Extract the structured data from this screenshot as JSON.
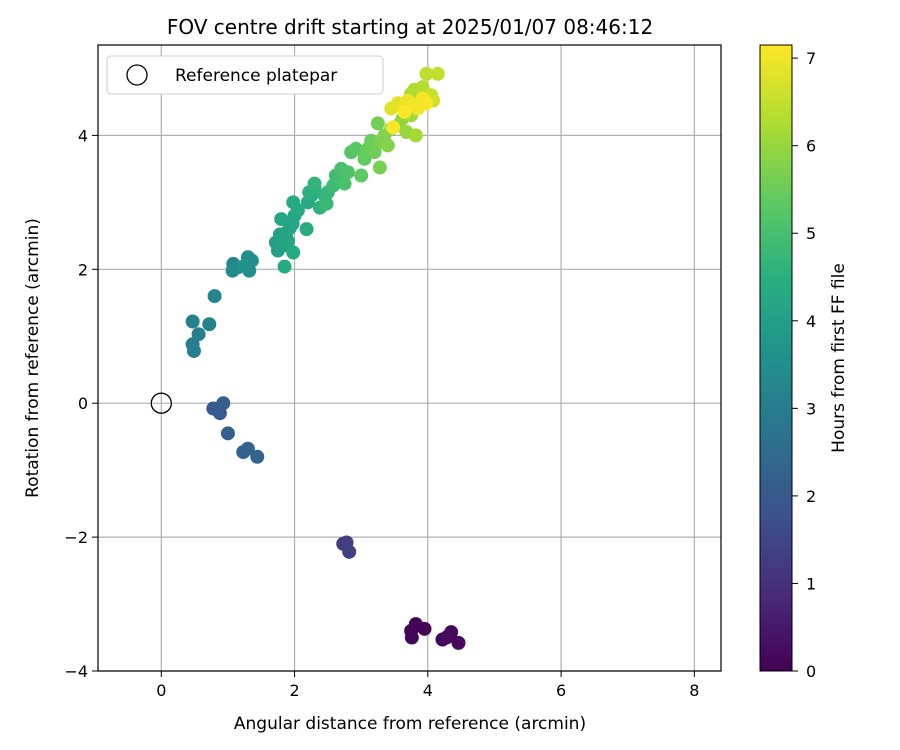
{
  "chart_data": {
    "type": "scatter",
    "title": "FOV centre drift starting at 2025/01/07 08:46:12",
    "xlabel": "Angular distance from reference (arcmin)",
    "ylabel": "Rotation from reference (arcmin)",
    "xlim": [
      -0.95,
      8.4
    ],
    "ylim": [
      -4.0,
      5.35
    ],
    "xticks": [
      0,
      2,
      4,
      6,
      8
    ],
    "xtick_labels": [
      "0",
      "2",
      "4",
      "6",
      "8"
    ],
    "yticks": [
      -4,
      -2,
      0,
      2,
      4
    ],
    "ytick_labels": [
      "−4",
      "−2",
      "0",
      "2",
      "4"
    ],
    "grid": true,
    "legend": {
      "position": "top-left",
      "entries": [
        "Reference platepar"
      ]
    },
    "reference_point": {
      "x": 0,
      "y": 0,
      "label": "Reference platepar"
    },
    "colorbar": {
      "label": "Hours from first FF file",
      "colormap": "viridis",
      "range": [
        0,
        7.15
      ],
      "ticks": [
        0,
        1,
        2,
        3,
        4,
        5,
        6,
        7
      ],
      "tick_labels": [
        "0",
        "1",
        "2",
        "3",
        "4",
        "5",
        "6",
        "7"
      ]
    },
    "series": [
      {
        "points": [
          {
            "x": 3.75,
            "y": -3.4,
            "c": 0.02
          },
          {
            "x": 3.82,
            "y": -3.3,
            "c": 0.05
          },
          {
            "x": 3.95,
            "y": -3.37,
            "c": 0.08
          },
          {
            "x": 3.76,
            "y": -3.5,
            "c": 0.1
          },
          {
            "x": 4.22,
            "y": -3.53,
            "c": 0.13
          },
          {
            "x": 4.35,
            "y": -3.42,
            "c": 0.16
          },
          {
            "x": 4.46,
            "y": -3.58,
            "c": 0.18
          },
          {
            "x": 4.28,
            "y": -3.5,
            "c": 0.2
          },
          {
            "x": 2.73,
            "y": -2.1,
            "c": 1.25
          },
          {
            "x": 2.78,
            "y": -2.08,
            "c": 1.3
          },
          {
            "x": 2.82,
            "y": -2.22,
            "c": 1.35
          },
          {
            "x": 0.78,
            "y": -0.08,
            "c": 2.0
          },
          {
            "x": 0.88,
            "y": -0.15,
            "c": 2.05
          },
          {
            "x": 0.93,
            "y": 0.0,
            "c": 2.1
          },
          {
            "x": 1.0,
            "y": -0.45,
            "c": 2.15
          },
          {
            "x": 1.23,
            "y": -0.73,
            "c": 2.2
          },
          {
            "x": 1.3,
            "y": -0.68,
            "c": 2.25
          },
          {
            "x": 1.44,
            "y": -0.8,
            "c": 2.3
          },
          {
            "x": 0.47,
            "y": 0.88,
            "c": 3.0
          },
          {
            "x": 0.49,
            "y": 0.78,
            "c": 3.05
          },
          {
            "x": 0.47,
            "y": 1.22,
            "c": 3.1
          },
          {
            "x": 0.56,
            "y": 1.03,
            "c": 3.1
          },
          {
            "x": 0.72,
            "y": 1.18,
            "c": 3.15
          },
          {
            "x": 0.8,
            "y": 1.6,
            "c": 3.2
          },
          {
            "x": 1.08,
            "y": 2.08,
            "c": 3.3
          },
          {
            "x": 1.07,
            "y": 1.98,
            "c": 3.35
          },
          {
            "x": 1.15,
            "y": 2.03,
            "c": 3.4
          },
          {
            "x": 1.3,
            "y": 2.18,
            "c": 3.45
          },
          {
            "x": 1.36,
            "y": 2.13,
            "c": 3.5
          },
          {
            "x": 1.32,
            "y": 1.98,
            "c": 3.55
          },
          {
            "x": 1.25,
            "y": 2.05,
            "c": 3.6
          },
          {
            "x": 1.72,
            "y": 2.4,
            "c": 4.0
          },
          {
            "x": 1.75,
            "y": 2.28,
            "c": 4.05
          },
          {
            "x": 1.78,
            "y": 2.52,
            "c": 4.05
          },
          {
            "x": 1.82,
            "y": 2.35,
            "c": 4.1
          },
          {
            "x": 1.85,
            "y": 2.48,
            "c": 4.1
          },
          {
            "x": 1.88,
            "y": 2.55,
            "c": 4.15
          },
          {
            "x": 1.9,
            "y": 2.42,
            "c": 4.15
          },
          {
            "x": 1.93,
            "y": 2.62,
            "c": 4.2
          },
          {
            "x": 1.97,
            "y": 2.68,
            "c": 4.2
          },
          {
            "x": 1.8,
            "y": 2.75,
            "c": 4.25
          },
          {
            "x": 2.0,
            "y": 2.8,
            "c": 4.25
          },
          {
            "x": 2.05,
            "y": 2.88,
            "c": 4.3
          },
          {
            "x": 1.98,
            "y": 3.0,
            "c": 4.3
          },
          {
            "x": 1.98,
            "y": 2.25,
            "c": 4.35
          },
          {
            "x": 1.85,
            "y": 2.04,
            "c": 4.35
          },
          {
            "x": 2.2,
            "y": 3.0,
            "c": 4.4
          },
          {
            "x": 2.18,
            "y": 2.6,
            "c": 4.4
          },
          {
            "x": 2.25,
            "y": 3.1,
            "c": 4.45
          },
          {
            "x": 2.3,
            "y": 3.22,
            "c": 4.5
          },
          {
            "x": 2.22,
            "y": 3.15,
            "c": 4.55
          },
          {
            "x": 2.38,
            "y": 2.92,
            "c": 4.6
          },
          {
            "x": 2.3,
            "y": 3.28,
            "c": 4.65
          },
          {
            "x": 2.45,
            "y": 3.1,
            "c": 4.7
          },
          {
            "x": 2.5,
            "y": 3.15,
            "c": 4.75
          },
          {
            "x": 2.48,
            "y": 2.98,
            "c": 4.8
          },
          {
            "x": 2.58,
            "y": 3.25,
            "c": 4.85
          },
          {
            "x": 2.62,
            "y": 3.4,
            "c": 4.9
          },
          {
            "x": 2.7,
            "y": 3.5,
            "c": 5.0
          },
          {
            "x": 2.75,
            "y": 3.28,
            "c": 5.05
          },
          {
            "x": 2.8,
            "y": 3.45,
            "c": 5.1
          },
          {
            "x": 2.85,
            "y": 3.75,
            "c": 5.2
          },
          {
            "x": 2.92,
            "y": 3.8,
            "c": 5.3
          },
          {
            "x": 3.0,
            "y": 3.4,
            "c": 5.35
          },
          {
            "x": 3.05,
            "y": 3.65,
            "c": 5.4
          },
          {
            "x": 3.1,
            "y": 3.8,
            "c": 5.45
          },
          {
            "x": 3.15,
            "y": 3.92,
            "c": 5.5
          },
          {
            "x": 3.2,
            "y": 3.75,
            "c": 5.55
          },
          {
            "x": 3.25,
            "y": 4.18,
            "c": 5.6
          },
          {
            "x": 3.28,
            "y": 3.52,
            "c": 5.65
          },
          {
            "x": 3.3,
            "y": 3.9,
            "c": 5.7
          },
          {
            "x": 3.35,
            "y": 4.0,
            "c": 5.75
          },
          {
            "x": 3.4,
            "y": 3.85,
            "c": 5.8
          },
          {
            "x": 3.45,
            "y": 4.1,
            "c": 5.85
          },
          {
            "x": 3.55,
            "y": 4.15,
            "c": 5.9
          },
          {
            "x": 3.62,
            "y": 4.25,
            "c": 5.95
          },
          {
            "x": 3.68,
            "y": 4.05,
            "c": 6.0
          },
          {
            "x": 3.72,
            "y": 4.38,
            "c": 6.05
          },
          {
            "x": 3.75,
            "y": 4.3,
            "c": 6.1
          },
          {
            "x": 3.82,
            "y": 4.0,
            "c": 6.15
          },
          {
            "x": 3.75,
            "y": 4.62,
            "c": 6.2
          },
          {
            "x": 3.8,
            "y": 4.68,
            "c": 6.25
          },
          {
            "x": 3.88,
            "y": 4.5,
            "c": 6.3
          },
          {
            "x": 3.92,
            "y": 4.72,
            "c": 6.35
          },
          {
            "x": 4.0,
            "y": 4.55,
            "c": 6.4
          },
          {
            "x": 3.98,
            "y": 4.92,
            "c": 6.45
          },
          {
            "x": 4.15,
            "y": 4.92,
            "c": 6.5
          },
          {
            "x": 4.05,
            "y": 4.6,
            "c": 6.55
          },
          {
            "x": 4.08,
            "y": 4.52,
            "c": 6.6
          },
          {
            "x": 3.45,
            "y": 4.4,
            "c": 6.8
          },
          {
            "x": 3.55,
            "y": 4.48,
            "c": 6.85
          },
          {
            "x": 3.62,
            "y": 4.42,
            "c": 6.9
          },
          {
            "x": 3.7,
            "y": 4.52,
            "c": 6.95
          },
          {
            "x": 3.78,
            "y": 4.45,
            "c": 7.0
          },
          {
            "x": 3.85,
            "y": 4.4,
            "c": 7.02
          },
          {
            "x": 3.92,
            "y": 4.55,
            "c": 7.05
          },
          {
            "x": 3.98,
            "y": 4.48,
            "c": 7.08
          },
          {
            "x": 3.48,
            "y": 4.12,
            "c": 7.1
          },
          {
            "x": 3.65,
            "y": 4.35,
            "c": 7.12
          }
        ]
      }
    ]
  }
}
